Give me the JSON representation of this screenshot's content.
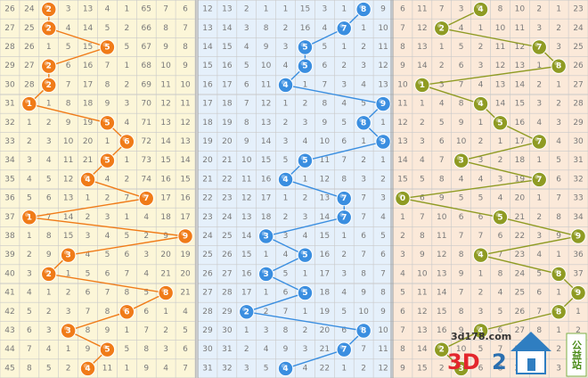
{
  "chart_data": {
    "type": "table",
    "periods": [
      26,
      27,
      28,
      29,
      30,
      31,
      32,
      33,
      34,
      35,
      36,
      37,
      38,
      39,
      40,
      41,
      42,
      43,
      44,
      45
    ],
    "left_rows": [
      [
        "26",
        "24",
        "2",
        "3",
        "13",
        "4",
        "1",
        "65",
        "7",
        "6"
      ],
      [
        "27",
        "25",
        "2",
        "4",
        "14",
        "5",
        "2",
        "66",
        "8",
        "7"
      ],
      [
        "28",
        "26",
        "1",
        "5",
        "15",
        "6",
        "5",
        "67",
        "9",
        "8"
      ],
      [
        "29",
        "27",
        "2",
        "6",
        "16",
        "7",
        "1",
        "68",
        "10",
        "9"
      ],
      [
        "30",
        "28",
        "2",
        "7",
        "17",
        "8",
        "2",
        "69",
        "11",
        "10"
      ],
      [
        "31",
        "0",
        "1",
        "8",
        "18",
        "9",
        "3",
        "70",
        "12",
        "11"
      ],
      [
        "32",
        "1",
        "2",
        "9",
        "19",
        "5",
        "4",
        "71",
        "13",
        "12"
      ],
      [
        "33",
        "2",
        "3",
        "10",
        "20",
        "1",
        "6",
        "72",
        "14",
        "13"
      ],
      [
        "34",
        "3",
        "4",
        "11",
        "21",
        "5",
        "1",
        "73",
        "15",
        "14"
      ],
      [
        "35",
        "4",
        "5",
        "12",
        "22",
        "4",
        "2",
        "74",
        "16",
        "15"
      ],
      [
        "36",
        "5",
        "6",
        "13",
        "1",
        "2",
        "7",
        "75",
        "17",
        "16"
      ],
      [
        "37",
        "0",
        "7",
        "14",
        "2",
        "3",
        "1",
        "4",
        "18",
        "17"
      ],
      [
        "38",
        "1",
        "8",
        "15",
        "3",
        "4",
        "5",
        "2",
        "9",
        "18"
      ],
      [
        "39",
        "2",
        "9",
        "3",
        "4",
        "5",
        "6",
        "3",
        "20",
        "19"
      ],
      [
        "40",
        "3",
        "2",
        "1",
        "5",
        "6",
        "7",
        "4",
        "21",
        "20"
      ],
      [
        "41",
        "4",
        "1",
        "2",
        "6",
        "7",
        "8",
        "5",
        "8",
        "21"
      ],
      [
        "42",
        "5",
        "2",
        "3",
        "7",
        "8",
        "6",
        "6",
        "1",
        "4"
      ],
      [
        "43",
        "6",
        "3",
        "3",
        "8",
        "9",
        "1",
        "7",
        "2",
        "5"
      ],
      [
        "44",
        "7",
        "4",
        "1",
        "9",
        "10",
        "5",
        "8",
        "3",
        "6"
      ],
      [
        "45",
        "8",
        "5",
        "2",
        "4",
        "11",
        "1",
        "9",
        "4",
        "7"
      ]
    ],
    "mid_rows": [
      [
        "12",
        "13",
        "2",
        "1",
        "1",
        "15",
        "3",
        "1",
        "8",
        "9"
      ],
      [
        "13",
        "14",
        "3",
        "8",
        "2",
        "16",
        "4",
        "7",
        "1",
        "10"
      ],
      [
        "14",
        "15",
        "4",
        "9",
        "3",
        "5",
        "5",
        "1",
        "2",
        "11"
      ],
      [
        "15",
        "16",
        "5",
        "10",
        "4",
        "5",
        "6",
        "2",
        "3",
        "12"
      ],
      [
        "16",
        "17",
        "6",
        "11",
        "4",
        "1",
        "7",
        "3",
        "4",
        "13"
      ],
      [
        "17",
        "18",
        "7",
        "12",
        "1",
        "2",
        "8",
        "4",
        "5",
        "9"
      ],
      [
        "18",
        "19",
        "8",
        "13",
        "2",
        "3",
        "9",
        "5",
        "8",
        "1"
      ],
      [
        "19",
        "20",
        "9",
        "14",
        "3",
        "4",
        "10",
        "6",
        "1",
        "9"
      ],
      [
        "20",
        "21",
        "10",
        "15",
        "5",
        "1",
        "11",
        "7",
        "2",
        "1"
      ],
      [
        "21",
        "22",
        "11",
        "16",
        "4",
        "1",
        "12",
        "8",
        "3",
        "2"
      ],
      [
        "22",
        "23",
        "12",
        "17",
        "1",
        "2",
        "13",
        "9",
        "7",
        "3"
      ],
      [
        "23",
        "24",
        "13",
        "18",
        "2",
        "3",
        "14",
        "10",
        "7",
        "4"
      ],
      [
        "24",
        "25",
        "14",
        "3",
        "3",
        "4",
        "15",
        "1",
        "6",
        "5"
      ],
      [
        "25",
        "26",
        "15",
        "1",
        "4",
        "5",
        "16",
        "2",
        "7",
        "6"
      ],
      [
        "26",
        "27",
        "16",
        "3",
        "5",
        "1",
        "17",
        "3",
        "8",
        "7"
      ],
      [
        "27",
        "28",
        "17",
        "1",
        "6",
        "5",
        "18",
        "4",
        "9",
        "8"
      ],
      [
        "28",
        "29",
        "2",
        "2",
        "7",
        "1",
        "19",
        "5",
        "10",
        "9"
      ],
      [
        "29",
        "30",
        "1",
        "3",
        "8",
        "2",
        "20",
        "6",
        "8",
        "10"
      ],
      [
        "30",
        "31",
        "2",
        "4",
        "9",
        "3",
        "21",
        "7",
        "7",
        "11"
      ],
      [
        "31",
        "32",
        "3",
        "5",
        "4",
        "4",
        "22",
        "1",
        "2",
        "12"
      ]
    ],
    "right_rows": [
      [
        "6",
        "11",
        "7",
        "3",
        "4",
        "8",
        "10",
        "2",
        "1",
        "23"
      ],
      [
        "7",
        "12",
        "2",
        "4",
        "1",
        "10",
        "11",
        "3",
        "2",
        "24"
      ],
      [
        "8",
        "13",
        "1",
        "5",
        "2",
        "11",
        "12",
        "7",
        "3",
        "25"
      ],
      [
        "9",
        "14",
        "2",
        "6",
        "3",
        "12",
        "13",
        "1",
        "8",
        "26"
      ],
      [
        "10",
        "4",
        "3",
        "7",
        "4",
        "13",
        "14",
        "2",
        "1",
        "27"
      ],
      [
        "11",
        "1",
        "4",
        "8",
        "4",
        "14",
        "15",
        "3",
        "2",
        "28"
      ],
      [
        "12",
        "2",
        "5",
        "9",
        "1",
        "5",
        "16",
        "4",
        "3",
        "29"
      ],
      [
        "13",
        "3",
        "6",
        "10",
        "2",
        "1",
        "17",
        "7",
        "4",
        "30"
      ],
      [
        "14",
        "4",
        "7",
        "3",
        "3",
        "2",
        "18",
        "1",
        "5",
        "31"
      ],
      [
        "15",
        "5",
        "8",
        "4",
        "4",
        "3",
        "19",
        "7",
        "6",
        "32"
      ],
      [
        "0",
        "6",
        "9",
        "5",
        "5",
        "4",
        "20",
        "1",
        "7",
        "33"
      ],
      [
        "1",
        "7",
        "10",
        "6",
        "6",
        "5",
        "21",
        "2",
        "8",
        "34"
      ],
      [
        "2",
        "8",
        "11",
        "7",
        "7",
        "6",
        "22",
        "3",
        "9",
        "35"
      ],
      [
        "3",
        "9",
        "12",
        "8",
        "4",
        "7",
        "23",
        "4",
        "1",
        "36"
      ],
      [
        "4",
        "10",
        "13",
        "9",
        "1",
        "8",
        "24",
        "5",
        "8",
        "37"
      ],
      [
        "5",
        "11",
        "14",
        "7",
        "2",
        "4",
        "25",
        "6",
        "1",
        "9"
      ],
      [
        "6",
        "12",
        "15",
        "8",
        "3",
        "5",
        "26",
        "7",
        "8",
        "1"
      ],
      [
        "7",
        "13",
        "16",
        "9",
        "4",
        "6",
        "27",
        "8",
        "1",
        "2"
      ],
      [
        "8",
        "14",
        "2",
        "10",
        "5",
        "7",
        "28",
        "9",
        "2",
        "3"
      ],
      [
        "9",
        "15",
        "2",
        "11",
        "6",
        "8",
        "29",
        "10",
        "3",
        "4"
      ]
    ],
    "hundreds_digit": [
      2,
      2,
      5,
      2,
      2,
      1,
      5,
      6,
      5,
      4,
      7,
      1,
      9,
      3,
      2,
      8,
      6,
      3,
      5,
      4
    ],
    "tens_digit": [
      8,
      7,
      5,
      5,
      4,
      9,
      8,
      9,
      5,
      4,
      7,
      7,
      3,
      5,
      3,
      5,
      2,
      8,
      7,
      4
    ],
    "units_digit": [
      4,
      2,
      7,
      8,
      1,
      4,
      5,
      7,
      3,
      7,
      0,
      5,
      9,
      4,
      8,
      9,
      8,
      4,
      2,
      3
    ],
    "colors": {
      "left_bg": "#fcf6d8",
      "mid_bg": "#e5f0fb",
      "right_bg": "#fbe9d9",
      "grid": "#c9c9c9",
      "left_ball": "#f07b18",
      "mid_ball": "#3a8ee0",
      "right_ball": "#8f9b23"
    }
  },
  "watermark": {
    "site_url": "3d178.com",
    "brand_left": "3D",
    "brand_right": "2",
    "badge": "公益站"
  }
}
